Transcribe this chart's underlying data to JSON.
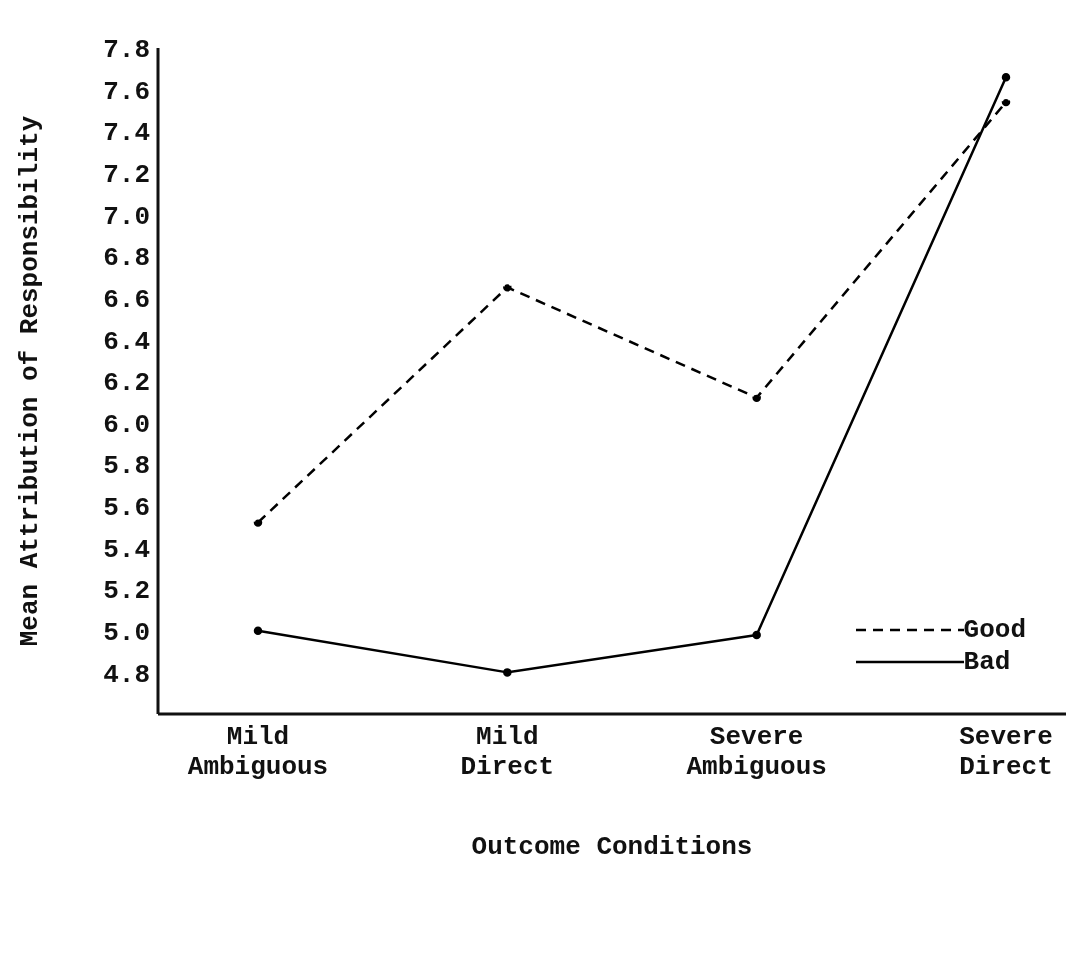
{
  "chart_data": {
    "type": "line",
    "xlabel": "Outcome Conditions",
    "ylabel": "Mean Attribution of Responsibility",
    "categories": [
      "Mild Ambiguous",
      "Mild Direct",
      "Severe Ambiguous",
      "Severe Direct"
    ],
    "series": [
      {
        "name": "Good",
        "color": "#000000",
        "line_style": "dashed",
        "values": [
          5.52,
          6.65,
          6.12,
          7.54
        ]
      },
      {
        "name": "Bad",
        "color": "#000000",
        "line_style": "solid",
        "values": [
          5.0,
          4.8,
          4.98,
          7.66
        ]
      }
    ],
    "ylim": [
      4.6,
      7.8
    ],
    "yticks": [
      4.8,
      {
        "value": 5,
        "label": "5.0"
      },
      5.2,
      5.4,
      5.6,
      5.8,
      {
        "value": 6,
        "label": "6.0"
      },
      6.2,
      6.4,
      6.6,
      6.8,
      {
        "value": 7,
        "label": "7.0"
      },
      7.2,
      7.4,
      7.6,
      7.8
    ],
    "grid": false,
    "legend": "bottom right",
    "marker": "circle"
  }
}
